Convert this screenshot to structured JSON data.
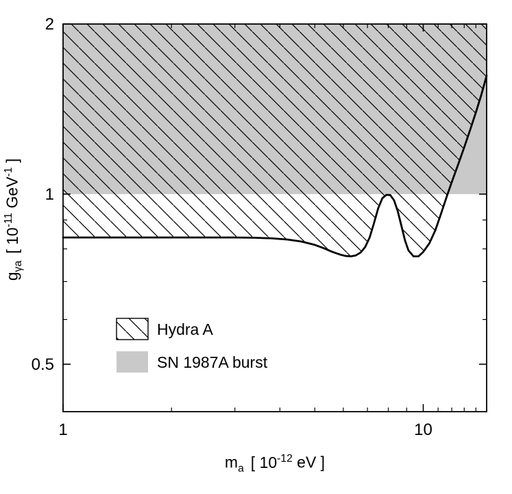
{
  "chart_data": {
    "type": "line",
    "xlabel": "m_a [ 10^-12 eV ]",
    "ylabel": "g_γa [ 10^-11 GeV^-1 ]",
    "xscale": "log",
    "yscale": "log",
    "xlim": [
      1,
      15
    ],
    "ylim": [
      0.412,
      2
    ],
    "grid": false,
    "x_ticks": {
      "major": [
        1,
        10
      ],
      "major_labels": [
        "1",
        "10"
      ],
      "minor": [
        2,
        3,
        4,
        5,
        6,
        7,
        8,
        9,
        11,
        12,
        13,
        14,
        15
      ]
    },
    "y_ticks": {
      "major": [
        0.5,
        1,
        2
      ],
      "major_labels": [
        "0.5",
        "1",
        "2"
      ],
      "minor": [
        0.6,
        0.7,
        0.8,
        0.9
      ]
    },
    "colors": {
      "sn_region_fill": "#c9c9c9",
      "curve": "#000000",
      "hatch_line": "#000000",
      "background": "#ffffff"
    },
    "regions": [
      {
        "name": "SN 1987A burst",
        "type": "horizontal-band",
        "g_from": 1.0,
        "g_to": 2.0,
        "style": "solid-gray"
      },
      {
        "name": "Hydra A",
        "type": "above-curve",
        "style": "diagonal-hatch"
      }
    ],
    "series": [
      {
        "name": "Hydra A exclusion lower boundary",
        "x": [
          1,
          1.5,
          2,
          2.5,
          3,
          3.4,
          3.8,
          4.2,
          4.6,
          5.0,
          5.3,
          5.6,
          5.9,
          6.1,
          6.3,
          6.5,
          6.7,
          6.9,
          7.1,
          7.3,
          7.5,
          7.7,
          7.9,
          8.1,
          8.3,
          8.5,
          8.7,
          8.9,
          9.1,
          9.4,
          9.7,
          10.0,
          10.4,
          10.8,
          11.2,
          11.6,
          12.0,
          12.5,
          13.0,
          13.5,
          14.0,
          14.5,
          15.0
        ],
        "y": [
          0.838,
          0.838,
          0.838,
          0.838,
          0.838,
          0.837,
          0.835,
          0.831,
          0.824,
          0.813,
          0.802,
          0.79,
          0.781,
          0.777,
          0.776,
          0.779,
          0.788,
          0.806,
          0.838,
          0.888,
          0.944,
          0.983,
          0.997,
          0.996,
          0.975,
          0.932,
          0.878,
          0.828,
          0.795,
          0.776,
          0.776,
          0.79,
          0.818,
          0.862,
          0.922,
          0.986,
          1.05,
          1.128,
          1.21,
          1.3,
          1.395,
          1.5,
          1.62
        ]
      }
    ],
    "legend": [
      {
        "label": "Hydra A",
        "swatch": "hatched"
      },
      {
        "label": "SN 1987A burst",
        "swatch": "solid-gray"
      }
    ],
    "legend_position": "lower-left",
    "axis_titles": {
      "x": {
        "symbol": "m",
        "sub": "a",
        "pre": "[ 10",
        "exp": "-12",
        "post": " eV ]"
      },
      "y": {
        "symbol": "g",
        "sub": "γa",
        "pre": "[ 10",
        "exp": "-11",
        "mid": " GeV",
        "exp2": "-1",
        "post": " ]"
      }
    }
  }
}
